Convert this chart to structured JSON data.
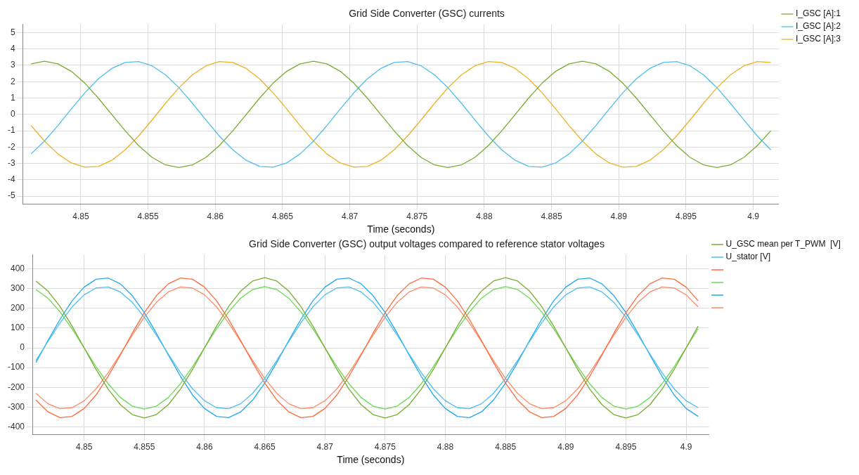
{
  "chart_data": [
    {
      "type": "line",
      "title": "Grid Side Converter (GSC) currents",
      "xlabel": "Time (seconds)",
      "grid": true,
      "legend": "right",
      "marker": "none",
      "line_style": "solid",
      "xlim": [
        4.8457,
        4.9019
      ],
      "xticks": [
        4.85,
        4.855,
        4.86,
        4.865,
        4.87,
        4.875,
        4.88,
        4.885,
        4.89,
        4.895,
        4.9
      ],
      "ylim": [
        -5.5,
        5.5
      ],
      "yticks": [
        -5,
        -4,
        -3,
        -2,
        -1,
        0,
        1,
        2,
        3,
        4,
        5
      ],
      "x": [
        4.8463,
        4.8473,
        4.8483,
        4.8493,
        4.8503,
        4.8513,
        4.8523,
        4.8533,
        4.8543,
        4.8553,
        4.8563,
        4.8573,
        4.8583,
        4.8593,
        4.8603,
        4.8613,
        4.8623,
        4.8633,
        4.8643,
        4.8653,
        4.8663,
        4.8673,
        4.8683,
        4.8693,
        4.8703,
        4.8713,
        4.8723,
        4.8733,
        4.8743,
        4.8753,
        4.8763,
        4.8773,
        4.8783,
        4.8793,
        4.8803,
        4.8813,
        4.8823,
        4.8833,
        4.8843,
        4.8853,
        4.8863,
        4.8873,
        4.8883,
        4.8893,
        4.8903,
        4.8913,
        4.8923,
        4.8933,
        4.8943,
        4.8953,
        4.8963,
        4.8973,
        4.8983,
        4.8993,
        4.9003,
        4.9013
      ],
      "series": [
        {
          "name": "I_GSC [A]:1",
          "color": "#77ac30",
          "values": [
            3.09,
            3.25,
            3.09,
            2.63,
            1.91,
            1.0,
            0,
            -1.0,
            -1.91,
            -2.63,
            -3.09,
            -3.25,
            -3.09,
            -2.63,
            -1.91,
            -1.0,
            0,
            1.0,
            1.91,
            2.63,
            3.09,
            3.25,
            3.09,
            2.63,
            1.91,
            1.0,
            0,
            -1.0,
            -1.91,
            -2.63,
            -3.09,
            -3.25,
            -3.09,
            -2.63,
            -1.91,
            -1.0,
            0,
            1.0,
            1.91,
            2.63,
            3.09,
            3.25,
            3.09,
            2.63,
            1.91,
            1.0,
            0,
            -1.0,
            -1.91,
            -2.63,
            -3.09,
            -3.25,
            -3.09,
            -2.63,
            -1.91,
            -1.0
          ]
        },
        {
          "name": "I_GSC [A]:2",
          "color": "#4dbeee",
          "values": [
            -2.42,
            -1.63,
            -0.68,
            0.34,
            1.32,
            2.17,
            2.81,
            3.18,
            3.23,
            2.97,
            2.42,
            1.63,
            0.68,
            -0.34,
            -1.32,
            -2.17,
            -2.81,
            -3.18,
            -3.23,
            -2.97,
            -2.42,
            -1.63,
            -0.68,
            0.34,
            1.32,
            2.17,
            2.81,
            3.18,
            3.23,
            2.97,
            2.42,
            1.63,
            0.68,
            -0.34,
            -1.32,
            -2.17,
            -2.81,
            -3.18,
            -3.23,
            -2.97,
            -2.42,
            -1.63,
            -0.68,
            0.34,
            1.32,
            2.17,
            2.81,
            3.18,
            3.23,
            2.97,
            2.42,
            1.63,
            0.68,
            -0.34,
            -1.32,
            -2.17
          ]
        },
        {
          "name": "I_GSC [A]:3",
          "color": "#edb120",
          "values": [
            -0.68,
            -1.63,
            -2.42,
            -2.97,
            -3.23,
            -3.18,
            -2.81,
            -2.17,
            -1.32,
            -0.34,
            0.68,
            1.63,
            2.42,
            2.97,
            3.23,
            3.18,
            2.81,
            2.17,
            1.32,
            0.34,
            -0.68,
            -1.63,
            -2.42,
            -2.97,
            -3.23,
            -3.18,
            -2.81,
            -2.17,
            -1.32,
            -0.34,
            0.68,
            1.63,
            2.42,
            2.97,
            3.23,
            3.18,
            2.81,
            2.17,
            1.32,
            0.34,
            -0.68,
            -1.63,
            -2.42,
            -2.97,
            -3.23,
            -3.18,
            -2.81,
            -2.17,
            -1.32,
            -0.34,
            0.68,
            1.63,
            2.42,
            2.97,
            3.23,
            3.18
          ]
        }
      ]
    },
    {
      "type": "line",
      "title": "Grid Side Converter (GSC) output voltages compared to reference stator voltages",
      "xlabel": "Time (seconds)",
      "grid": true,
      "legend": "right",
      "marker": "none",
      "line_style": "solid",
      "xlim": [
        4.8457,
        4.9019
      ],
      "xticks": [
        4.85,
        4.855,
        4.86,
        4.865,
        4.87,
        4.875,
        4.88,
        4.885,
        4.89,
        4.895,
        4.9
      ],
      "ylim": [
        -440,
        470
      ],
      "yticks": [
        -400,
        -300,
        -200,
        -100,
        0,
        100,
        200,
        300,
        400
      ],
      "x": [
        4.846,
        4.847,
        4.848,
        4.849,
        4.85,
        4.851,
        4.852,
        4.853,
        4.854,
        4.855,
        4.856,
        4.857,
        4.858,
        4.859,
        4.86,
        4.861,
        4.862,
        4.863,
        4.864,
        4.865,
        4.866,
        4.867,
        4.868,
        4.869,
        4.87,
        4.871,
        4.872,
        4.873,
        4.874,
        4.875,
        4.876,
        4.877,
        4.878,
        4.879,
        4.88,
        4.881,
        4.882,
        4.883,
        4.884,
        4.885,
        4.886,
        4.887,
        4.888,
        4.889,
        4.89,
        4.891,
        4.892,
        4.893,
        4.894,
        4.895,
        4.896,
        4.897,
        4.898,
        4.899,
        4.9,
        4.901
      ],
      "series": [
        {
          "name": "U_GSC mean per T_PWM  [V]",
          "color": "#77ac30",
          "values": [
            338,
            287,
            209,
            110,
            0,
            -110,
            -209,
            -287,
            -338,
            -355,
            -338,
            -287,
            -209,
            -110,
            0,
            110,
            209,
            287,
            338,
            355,
            338,
            287,
            209,
            110,
            0,
            -110,
            -209,
            -287,
            -338,
            -355,
            -338,
            -287,
            -209,
            -110,
            0,
            110,
            209,
            287,
            338,
            355,
            338,
            287,
            209,
            110,
            0,
            -110,
            -209,
            -287,
            -338,
            -355,
            -338,
            -287,
            -209,
            -110,
            0,
            110
          ]
        },
        {
          "name": "U_stator [V]",
          "color": "#4dbeee",
          "values": [
            -64,
            32,
            126,
            207,
            268,
            303,
            308,
            283,
            230,
            155,
            64,
            -32,
            -126,
            -207,
            -268,
            -303,
            -308,
            -283,
            -230,
            -155,
            -64,
            32,
            126,
            207,
            268,
            303,
            308,
            283,
            230,
            155,
            64,
            -32,
            -126,
            -207,
            -268,
            -303,
            -308,
            -283,
            -230,
            -155,
            -64,
            32,
            126,
            207,
            268,
            303,
            308,
            283,
            230,
            155,
            64,
            -32,
            -126,
            -207,
            -268,
            -303
          ]
        },
        {
          "color": "#ff6a3d",
          "values": [
            -264,
            -324,
            -353,
            -347,
            -307,
            -238,
            -144,
            -37,
            74,
            178,
            264,
            324,
            353,
            347,
            307,
            238,
            144,
            37,
            -74,
            -178,
            -264,
            -324,
            -353,
            -347,
            -307,
            -238,
            -144,
            -37,
            74,
            178,
            264,
            324,
            353,
            347,
            307,
            238,
            144,
            37,
            -74,
            -178,
            -264,
            -324,
            -353,
            -347,
            -307,
            -238,
            -144,
            -37,
            74,
            178,
            264,
            324,
            353,
            347,
            307,
            238
          ]
        },
        {
          "color": "#66d94f",
          "values": [
            295,
            251,
            182,
            96,
            0,
            -96,
            -182,
            -251,
            -295,
            -310,
            -295,
            -251,
            -182,
            -96,
            0,
            96,
            182,
            251,
            295,
            310,
            295,
            251,
            182,
            96,
            0,
            -96,
            -182,
            -251,
            -295,
            -310,
            -295,
            -251,
            -182,
            -96,
            0,
            96,
            182,
            251,
            295,
            310,
            295,
            251,
            182,
            96,
            0,
            -96,
            -182,
            -251,
            -295,
            -310,
            -295,
            -251,
            -182,
            -96,
            0,
            96
          ]
        },
        {
          "color": "#1fa9f0",
          "values": [
            -74,
            37,
            144,
            238,
            307,
            347,
            353,
            324,
            264,
            178,
            74,
            -37,
            -144,
            -238,
            -307,
            -347,
            -353,
            -324,
            -264,
            -178,
            -74,
            37,
            144,
            238,
            307,
            347,
            353,
            324,
            264,
            178,
            74,
            -37,
            -144,
            -238,
            -307,
            -347,
            -353,
            -324,
            -264,
            -178,
            -74,
            37,
            144,
            238,
            307,
            347,
            353,
            324,
            264,
            178,
            74,
            -37,
            -144,
            -238,
            -307,
            -347
          ]
        },
        {
          "color": "#ff8a65",
          "values": [
            -230,
            -283,
            -308,
            -303,
            -268,
            -207,
            -126,
            -32,
            64,
            155,
            230,
            283,
            308,
            303,
            268,
            207,
            126,
            32,
            -64,
            -155,
            -230,
            -283,
            -308,
            -303,
            -268,
            -207,
            -126,
            -32,
            64,
            155,
            230,
            283,
            308,
            303,
            268,
            207,
            126,
            32,
            -64,
            -155,
            -230,
            -283,
            -308,
            -303,
            -268,
            -207,
            -126,
            -32,
            64,
            155,
            230,
            283,
            308,
            303,
            268,
            207
          ]
        }
      ]
    }
  ]
}
